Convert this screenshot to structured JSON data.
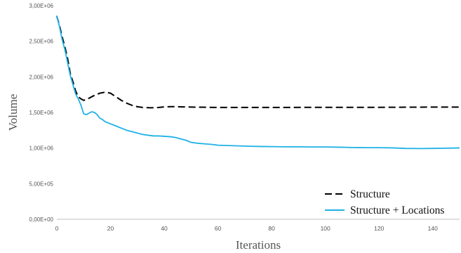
{
  "chart_data": {
    "type": "line",
    "title": "",
    "xlabel": "Iterations",
    "ylabel": "Volume",
    "xlim": [
      0,
      150
    ],
    "ylim": [
      0,
      3000000
    ],
    "x_ticks": [
      0,
      20,
      40,
      60,
      80,
      100,
      120,
      140
    ],
    "x_tick_labels": [
      "0",
      "20",
      "40",
      "60",
      "80",
      "100",
      "120",
      "140"
    ],
    "y_ticks": [
      0,
      500000,
      1000000,
      1500000,
      2000000,
      2500000,
      3000000
    ],
    "y_tick_labels": [
      "0,00E+00",
      "5,00E+05",
      "1,00E+06",
      "1,50E+06",
      "2,00E+06",
      "2,50E+06",
      "3,00E+06"
    ],
    "grid": false,
    "legend_position": "bottom-right",
    "series": [
      {
        "name": "Structure",
        "style": "dashed",
        "color": "#000000",
        "points": [
          [
            0,
            2850000
          ],
          [
            1,
            2720000
          ],
          [
            2,
            2560000
          ],
          [
            3,
            2420000
          ],
          [
            4,
            2260000
          ],
          [
            5,
            2050000
          ],
          [
            6,
            1930000
          ],
          [
            7,
            1800000
          ],
          [
            8,
            1720000
          ],
          [
            9,
            1690000
          ],
          [
            10,
            1670000
          ],
          [
            11,
            1680000
          ],
          [
            12,
            1700000
          ],
          [
            14,
            1740000
          ],
          [
            16,
            1770000
          ],
          [
            18,
            1785000
          ],
          [
            20,
            1770000
          ],
          [
            22,
            1720000
          ],
          [
            24,
            1670000
          ],
          [
            26,
            1630000
          ],
          [
            28,
            1600000
          ],
          [
            30,
            1580000
          ],
          [
            32,
            1570000
          ],
          [
            35,
            1565000
          ],
          [
            38,
            1570000
          ],
          [
            40,
            1578000
          ],
          [
            43,
            1582000
          ],
          [
            47,
            1578000
          ],
          [
            52,
            1574000
          ],
          [
            60,
            1570000
          ],
          [
            80,
            1570000
          ],
          [
            100,
            1572000
          ],
          [
            120,
            1572000
          ],
          [
            140,
            1575000
          ],
          [
            150,
            1575000
          ]
        ]
      },
      {
        "name": "Structure + Locations",
        "style": "solid",
        "color": "#1fb1e6",
        "points": [
          [
            0,
            2860000
          ],
          [
            1,
            2700000
          ],
          [
            2,
            2520000
          ],
          [
            3,
            2380000
          ],
          [
            4,
            2200000
          ],
          [
            5,
            2020000
          ],
          [
            6,
            1890000
          ],
          [
            7,
            1760000
          ],
          [
            8,
            1690000
          ],
          [
            9,
            1600000
          ],
          [
            10,
            1480000
          ],
          [
            11,
            1470000
          ],
          [
            12,
            1490000
          ],
          [
            13,
            1510000
          ],
          [
            14,
            1500000
          ],
          [
            15,
            1470000
          ],
          [
            16,
            1420000
          ],
          [
            17,
            1400000
          ],
          [
            18,
            1370000
          ],
          [
            20,
            1340000
          ],
          [
            22,
            1310000
          ],
          [
            24,
            1280000
          ],
          [
            26,
            1250000
          ],
          [
            28,
            1230000
          ],
          [
            30,
            1210000
          ],
          [
            32,
            1190000
          ],
          [
            34,
            1180000
          ],
          [
            36,
            1170000
          ],
          [
            38,
            1170000
          ],
          [
            40,
            1165000
          ],
          [
            42,
            1160000
          ],
          [
            44,
            1150000
          ],
          [
            46,
            1130000
          ],
          [
            48,
            1110000
          ],
          [
            50,
            1080000
          ],
          [
            53,
            1065000
          ],
          [
            55,
            1060000
          ],
          [
            58,
            1050000
          ],
          [
            60,
            1040000
          ],
          [
            64,
            1035000
          ],
          [
            68,
            1030000
          ],
          [
            72,
            1025000
          ],
          [
            76,
            1022000
          ],
          [
            80,
            1020000
          ],
          [
            85,
            1018000
          ],
          [
            90,
            1018000
          ],
          [
            95,
            1015000
          ],
          [
            100,
            1015000
          ],
          [
            105,
            1012000
          ],
          [
            110,
            1008000
          ],
          [
            115,
            1005000
          ],
          [
            120,
            1005000
          ],
          [
            125,
            1002000
          ],
          [
            130,
            995000
          ],
          [
            135,
            993000
          ],
          [
            140,
            995000
          ],
          [
            145,
            998000
          ],
          [
            148,
            1000000
          ],
          [
            150,
            1002000
          ]
        ]
      }
    ]
  }
}
